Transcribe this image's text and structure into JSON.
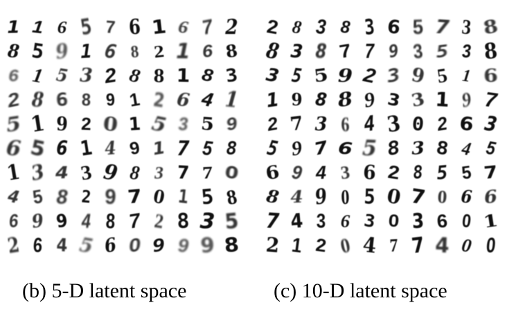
{
  "panels": [
    {
      "caption": "(b) 5-D latent space",
      "digits": [
        [
          "1",
          "1",
          "6",
          "5",
          "7",
          "6",
          "1",
          "6",
          "7",
          "2"
        ],
        [
          "8",
          "5",
          "9",
          "1",
          "6",
          "8",
          "2",
          "1",
          "6",
          "8"
        ],
        [
          "6",
          "1",
          "5",
          "3",
          "2",
          "8",
          "8",
          "1",
          "8",
          "3"
        ],
        [
          "2",
          "8",
          "6",
          "8",
          "9",
          "1",
          "2",
          "6",
          "4",
          "1"
        ],
        [
          "5",
          "1",
          "9",
          "2",
          "0",
          "1",
          "5",
          "3",
          "5",
          "9"
        ],
        [
          "6",
          "5",
          "6",
          "1",
          "4",
          "9",
          "1",
          "7",
          "5",
          "8"
        ],
        [
          "1",
          "3",
          "4",
          "3",
          "9",
          "8",
          "3",
          "7",
          "7",
          "0"
        ],
        [
          "4",
          "5",
          "8",
          "2",
          "9",
          "7",
          "0",
          "1",
          "5",
          "8"
        ],
        [
          "6",
          "9",
          "9",
          "4",
          "8",
          "7",
          "2",
          "8",
          "3",
          "5"
        ],
        [
          "2",
          "6",
          "4",
          "5",
          "6",
          "0",
          "9",
          "9",
          "9",
          "8"
        ]
      ]
    },
    {
      "caption": "(c) 10-D latent space",
      "digits": [
        [
          "2",
          "8",
          "3",
          "8",
          "3",
          "6",
          "5",
          "7",
          "3",
          "8"
        ],
        [
          "8",
          "3",
          "8",
          "7",
          "7",
          "9",
          "3",
          "5",
          "3",
          "8"
        ],
        [
          "3",
          "5",
          "5",
          "9",
          "2",
          "3",
          "9",
          "5",
          "1",
          "6"
        ],
        [
          "1",
          "9",
          "8",
          "8",
          "9",
          "3",
          "3",
          "1",
          "9",
          "7"
        ],
        [
          "2",
          "7",
          "3",
          "6",
          "4",
          "3",
          "0",
          "2",
          "6",
          "3"
        ],
        [
          "5",
          "9",
          "7",
          "6",
          "5",
          "8",
          "3",
          "8",
          "4",
          "5"
        ],
        [
          "6",
          "9",
          "4",
          "3",
          "6",
          "2",
          "8",
          "5",
          "5",
          "7"
        ],
        [
          "8",
          "4",
          "9",
          "0",
          "5",
          "0",
          "7",
          "0",
          "6",
          "6"
        ],
        [
          "7",
          "4",
          "3",
          "6",
          "3",
          "0",
          "3",
          "6",
          "0",
          "1"
        ],
        [
          "2",
          "1",
          "2",
          "0",
          "4",
          "7",
          "7",
          "4",
          "0",
          "0"
        ]
      ]
    }
  ]
}
